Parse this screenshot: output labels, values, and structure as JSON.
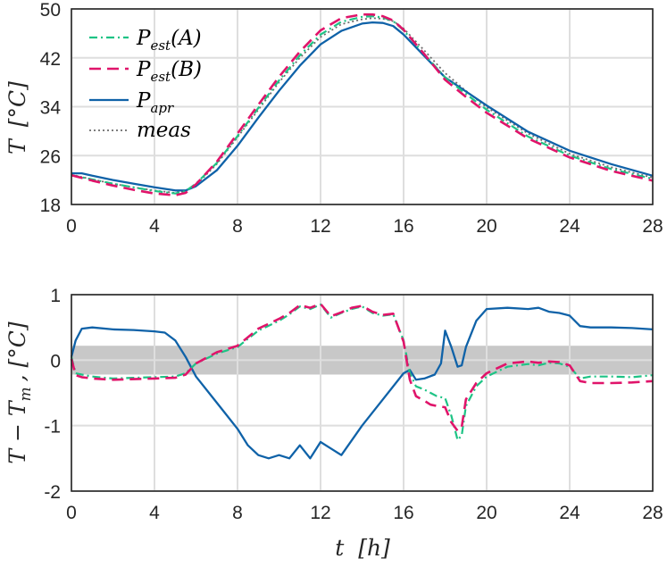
{
  "colors": {
    "A": "#1ec385",
    "B": "#e0146a",
    "apr": "#0f62a8",
    "meas": "#6b6b6b",
    "band": "#c8c8c8",
    "grid": "#dedede",
    "axis": "#262626"
  },
  "chart_data": [
    {
      "type": "line",
      "ylabel": "T [°C]",
      "ylabel_parts": {
        "main": "T",
        "unit": "[°C]"
      },
      "xlim": [
        0,
        28
      ],
      "ylim": [
        18,
        50
      ],
      "xticks": [
        "0",
        "4",
        "8",
        "12",
        "16",
        "20",
        "24",
        "28"
      ],
      "yticks": [
        "18",
        "26",
        "34",
        "42",
        "50"
      ],
      "legend_position": "top-left",
      "legend": [
        {
          "key": "A",
          "main": "P",
          "sub": "est",
          "arg": "(A)"
        },
        {
          "key": "B",
          "main": "P",
          "sub": "est",
          "arg": "(B)"
        },
        {
          "key": "apr",
          "main": "P",
          "sub": "apr",
          "arg": ""
        },
        {
          "key": "meas",
          "main": "meas",
          "sub": "",
          "arg": ""
        }
      ],
      "series": [
        {
          "key": "A",
          "name": "P_est(A)",
          "x": [
            0,
            1,
            2,
            3,
            4,
            5,
            5.5,
            6,
            7,
            8,
            9,
            10,
            11,
            12,
            13,
            14,
            14.5,
            15,
            15.5,
            16,
            17,
            18,
            19,
            20,
            22,
            24,
            26,
            28
          ],
          "values": [
            22.8,
            22.1,
            21.4,
            20.8,
            20.2,
            19.8,
            20.2,
            21.4,
            24.8,
            29.2,
            33.8,
            38.3,
            42.4,
            45.8,
            47.9,
            48.7,
            48.8,
            48.6,
            48.0,
            46.5,
            42.6,
            38.8,
            36.1,
            33.5,
            29.1,
            26.0,
            23.8,
            22.2
          ]
        },
        {
          "key": "B",
          "name": "P_est(B)",
          "x": [
            0,
            1,
            2,
            3,
            4,
            5,
            5.5,
            6,
            7,
            8,
            9,
            10,
            11,
            12,
            13,
            14,
            14.5,
            15,
            15.5,
            16,
            17,
            18,
            19,
            20,
            22,
            24,
            26,
            28
          ],
          "values": [
            22.8,
            21.9,
            21.1,
            20.4,
            19.8,
            19.5,
            19.9,
            21.3,
            25.0,
            29.6,
            34.3,
            38.9,
            43.0,
            46.5,
            48.5,
            49.1,
            49.1,
            48.8,
            48.1,
            46.6,
            42.6,
            38.4,
            35.6,
            33.0,
            28.8,
            25.7,
            23.5,
            21.9
          ]
        },
        {
          "key": "apr",
          "name": "P_apr",
          "x": [
            0,
            0.5,
            1,
            2,
            3,
            4,
            5,
            5.5,
            6,
            7,
            8,
            9,
            10,
            11,
            12,
            13,
            14,
            14.5,
            15,
            15.5,
            16,
            17,
            18,
            19,
            20,
            22,
            24,
            26,
            28
          ],
          "values": [
            23.1,
            23.1,
            22.7,
            22.0,
            21.4,
            20.8,
            20.3,
            20.3,
            21.0,
            23.6,
            27.6,
            32.2,
            36.6,
            40.7,
            44.2,
            46.4,
            47.6,
            47.8,
            47.7,
            47.2,
            45.8,
            42.3,
            38.8,
            36.5,
            34.2,
            29.9,
            26.8,
            24.6,
            22.7
          ]
        },
        {
          "key": "meas",
          "name": "meas",
          "x": [
            0,
            1,
            2,
            3,
            4,
            5,
            5.5,
            6,
            7,
            8,
            9,
            10,
            11,
            12,
            13,
            14,
            14.5,
            15,
            15.5,
            16,
            17,
            18,
            19,
            20,
            22,
            24,
            26,
            28
          ],
          "values": [
            22.9,
            22.1,
            21.4,
            20.8,
            20.3,
            19.9,
            20.2,
            21.2,
            24.6,
            29.0,
            33.5,
            38.0,
            42.0,
            45.4,
            47.5,
            48.3,
            48.5,
            48.4,
            48.0,
            46.8,
            43.2,
            39.5,
            36.6,
            33.9,
            29.6,
            26.3,
            24.1,
            22.4
          ]
        }
      ]
    },
    {
      "type": "line",
      "xlabel": "t [h]",
      "xlabel_parts": {
        "main": "t",
        "unit": "[h]"
      },
      "ylabel": "T − T_m , [°C]",
      "ylabel_parts": {
        "main": "T − T",
        "sub": "m",
        "unit": ", [°C]"
      },
      "xlim": [
        0,
        28
      ],
      "ylim": [
        -2,
        1
      ],
      "xticks": [
        "0",
        "4",
        "8",
        "12",
        "16",
        "20",
        "24",
        "28"
      ],
      "yticks": [
        "-2",
        "-1",
        "0",
        "1"
      ],
      "band": [
        -0.22,
        0.22
      ],
      "series": [
        {
          "key": "A",
          "x": [
            0,
            0.2,
            0.5,
            1,
            2,
            3,
            4,
            5,
            5.5,
            6,
            7,
            8,
            9,
            10,
            10.5,
            11,
            11.5,
            12,
            12.5,
            13,
            13.5,
            14,
            14.5,
            15,
            15.5,
            16,
            16.3,
            16.6,
            17,
            17.3,
            17.6,
            18,
            18.3,
            18.6,
            18.8,
            19,
            19.5,
            20,
            21,
            22,
            22.5,
            23,
            23.5,
            24,
            24.5,
            25,
            26,
            27,
            28
          ],
          "values": [
            0.05,
            -0.2,
            -0.22,
            -0.25,
            -0.28,
            -0.27,
            -0.26,
            -0.25,
            -0.2,
            -0.05,
            0.1,
            0.2,
            0.45,
            0.6,
            0.7,
            0.82,
            0.78,
            0.85,
            0.65,
            0.72,
            0.78,
            0.82,
            0.72,
            0.68,
            0.7,
            0.3,
            -0.2,
            -0.4,
            -0.45,
            -0.5,
            -0.55,
            -0.58,
            -0.85,
            -1.22,
            -1.15,
            -0.7,
            -0.4,
            -0.25,
            -0.1,
            -0.06,
            -0.08,
            -0.04,
            -0.05,
            -0.1,
            -0.28,
            -0.25,
            -0.25,
            -0.26,
            -0.23
          ]
        },
        {
          "key": "B",
          "x": [
            0,
            0.2,
            0.5,
            1,
            2,
            3,
            4,
            5,
            5.5,
            6,
            7,
            8,
            9,
            10,
            10.5,
            11,
            11.5,
            12,
            12.5,
            13,
            13.5,
            14,
            14.5,
            15,
            15.5,
            16,
            16.3,
            16.6,
            17,
            17.3,
            17.6,
            18,
            18.3,
            18.6,
            18.8,
            19,
            19.5,
            20,
            21,
            22,
            22.5,
            23,
            23.5,
            24,
            24.5,
            25,
            26,
            27,
            28
          ],
          "values": [
            0.02,
            -0.23,
            -0.26,
            -0.28,
            -0.3,
            -0.29,
            -0.28,
            -0.27,
            -0.22,
            -0.05,
            0.12,
            0.22,
            0.48,
            0.63,
            0.72,
            0.84,
            0.8,
            0.86,
            0.67,
            0.73,
            0.8,
            0.83,
            0.74,
            0.69,
            0.71,
            0.28,
            -0.3,
            -0.55,
            -0.62,
            -0.68,
            -0.7,
            -0.72,
            -0.95,
            -1.08,
            -1.02,
            -0.6,
            -0.35,
            -0.2,
            -0.05,
            -0.02,
            -0.04,
            -0.02,
            -0.03,
            -0.08,
            -0.32,
            -0.35,
            -0.35,
            -0.34,
            -0.32
          ]
        },
        {
          "key": "apr",
          "x": [
            0,
            0.2,
            0.5,
            1,
            2,
            3,
            4,
            4.5,
            5,
            5.5,
            6,
            7,
            8,
            8.5,
            9,
            9.5,
            10,
            10.5,
            11,
            11.5,
            12,
            12.5,
            13,
            14,
            15,
            16,
            16.3,
            16.6,
            17,
            17.5,
            17.8,
            18,
            18.3,
            18.6,
            18.8,
            19,
            19.5,
            20,
            21,
            22,
            22.5,
            23,
            23.5,
            24,
            24.5,
            25,
            26,
            27,
            28
          ],
          "values": [
            0.05,
            0.3,
            0.48,
            0.5,
            0.47,
            0.46,
            0.44,
            0.42,
            0.3,
            0.05,
            -0.25,
            -0.65,
            -1.05,
            -1.3,
            -1.45,
            -1.5,
            -1.45,
            -1.5,
            -1.3,
            -1.5,
            -1.25,
            -1.35,
            -1.45,
            -1.0,
            -0.6,
            -0.2,
            -0.15,
            -0.3,
            -0.28,
            -0.22,
            -0.05,
            0.45,
            0.2,
            -0.1,
            -0.08,
            0.2,
            0.6,
            0.78,
            0.8,
            0.78,
            0.8,
            0.74,
            0.72,
            0.68,
            0.52,
            0.5,
            0.5,
            0.49,
            0.47
          ]
        }
      ]
    }
  ]
}
